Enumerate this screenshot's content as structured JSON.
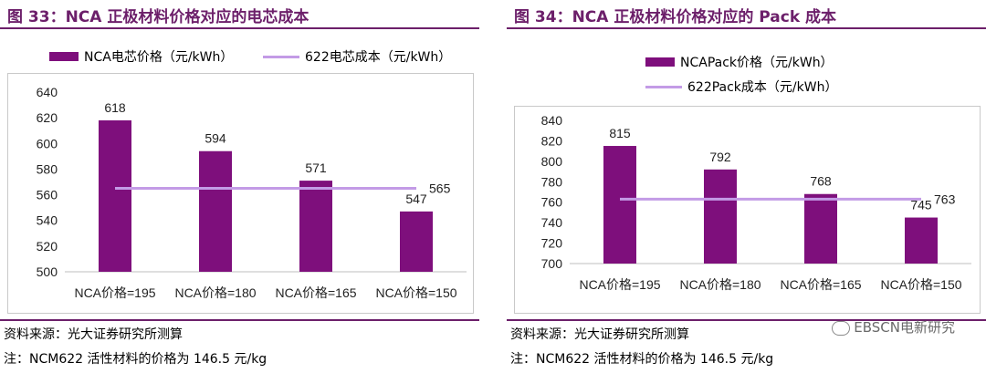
{
  "panels": [
    {
      "title": "图 33：NCA 正极材料价格对应的电芯成本",
      "legend": {
        "bar": "NCA电芯价格（元/kWh）",
        "line": "622电芯成本（元/kWh）"
      },
      "source": "资料来源：光大证券研究所测算",
      "note": "注：NCM622 活性材料的价格为 146.5 元/kg"
    },
    {
      "title": "图 34：NCA 正极材料价格对应的 Pack 成本",
      "legend": {
        "bar": "NCAPack价格（元/kWh）",
        "line": "622Pack成本（元/kWh）"
      },
      "source": "资料来源：光大证券研究所测算",
      "note": "注：NCM622 活性材料的价格为 146.5 元/kg"
    }
  ],
  "watermark": "EBSCN电新研究",
  "colors": {
    "bar": "#7e0f7c",
    "line": "#c39be6",
    "title": "#6c1f6a"
  },
  "chart_data": [
    {
      "type": "bar",
      "categories": [
        "NCA价格=195",
        "NCA价格=180",
        "NCA价格=165",
        "NCA价格=150"
      ],
      "series": [
        {
          "name": "NCA电芯价格（元/kWh）",
          "type": "bar",
          "values": [
            618,
            594,
            571,
            547
          ]
        },
        {
          "name": "622电芯成本（元/kWh）",
          "type": "line",
          "values": [
            565,
            565,
            565,
            565
          ]
        }
      ],
      "line_label": "565",
      "ylim": [
        500,
        640
      ],
      "yticks": [
        500,
        520,
        540,
        560,
        580,
        600,
        620,
        640
      ],
      "grid": false,
      "legend_position": "top"
    },
    {
      "type": "bar",
      "categories": [
        "NCA价格=195",
        "NCA价格=180",
        "NCA价格=165",
        "NCA价格=150"
      ],
      "series": [
        {
          "name": "NCAPack价格（元/kWh）",
          "type": "bar",
          "values": [
            815,
            792,
            768,
            745
          ]
        },
        {
          "name": "622Pack成本（元/kWh）",
          "type": "line",
          "values": [
            763,
            763,
            763,
            763
          ]
        }
      ],
      "line_label": "763",
      "ylim": [
        700,
        840
      ],
      "yticks": [
        700,
        720,
        740,
        760,
        780,
        800,
        820,
        840
      ],
      "grid": false,
      "legend_position": "top"
    }
  ]
}
